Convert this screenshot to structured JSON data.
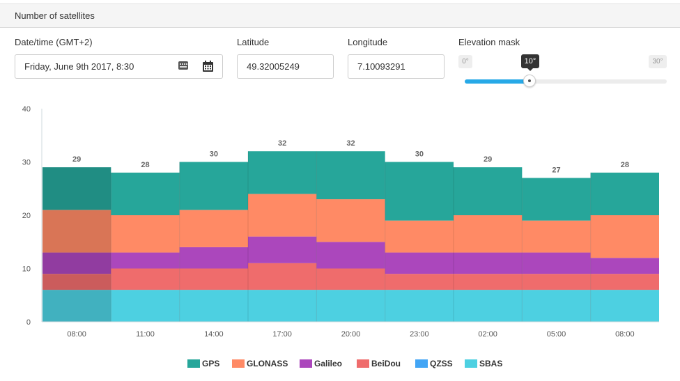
{
  "header": {
    "title": "Number of satellites"
  },
  "form": {
    "datetime_label": "Date/time (GMT+2)",
    "datetime_value": "Friday, June 9th 2017, 8:30",
    "latitude_label": "Latitude",
    "latitude_value": "49.32005249",
    "longitude_label": "Longitude",
    "longitude_value": "7.10093291",
    "elevation_label": "Elevation mask",
    "elevation_min": "0°",
    "elevation_max": "30°",
    "elevation_value": "10°",
    "elevation_fraction": 0.333
  },
  "colors": {
    "GPS": "#26a69a",
    "GLONASS": "#ff8a65",
    "Galileo": "#ab47bc",
    "BeiDou": "#ef6c6c",
    "QZSS": "#42a5f5",
    "SBAS": "#4dd0e1"
  },
  "chart_data": {
    "type": "bar",
    "stacked": true,
    "categories": [
      "08:00",
      "11:00",
      "14:00",
      "17:00",
      "20:00",
      "23:00",
      "02:00",
      "05:00",
      "08:00"
    ],
    "ylim": [
      0,
      40
    ],
    "yticks": [
      "0",
      "10",
      "20",
      "30",
      "40"
    ],
    "totals": [
      "29",
      "28",
      "30",
      "32",
      "32",
      "30",
      "29",
      "27",
      "28"
    ],
    "highlighted_index": 0,
    "series": [
      {
        "name": "SBAS",
        "values": [
          6,
          6,
          6,
          6,
          6,
          6,
          6,
          6,
          6
        ]
      },
      {
        "name": "QZSS",
        "values": [
          0,
          0,
          0,
          0,
          0,
          0,
          0,
          0,
          0
        ]
      },
      {
        "name": "BeiDou",
        "values": [
          3,
          4,
          4,
          5,
          4,
          3,
          3,
          3,
          3
        ]
      },
      {
        "name": "Galileo",
        "values": [
          4,
          3,
          4,
          5,
          5,
          4,
          4,
          4,
          3
        ]
      },
      {
        "name": "GLONASS",
        "values": [
          8,
          7,
          7,
          8,
          8,
          6,
          7,
          6,
          8
        ]
      },
      {
        "name": "GPS",
        "values": [
          8,
          8,
          9,
          8,
          9,
          11,
          9,
          8,
          8
        ]
      }
    ],
    "legend": [
      "GPS",
      "GLONASS",
      "Galileo",
      "BeiDou",
      "QZSS",
      "SBAS"
    ],
    "legend_position": "bottom"
  }
}
